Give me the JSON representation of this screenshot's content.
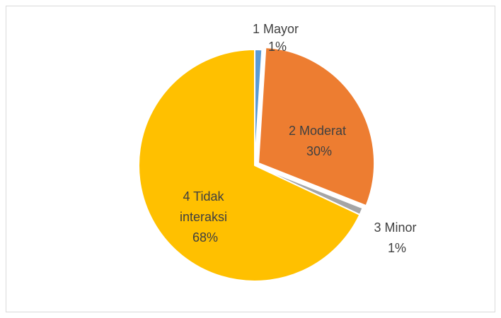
{
  "chart_data": {
    "type": "pie",
    "title": "",
    "slices": [
      {
        "name": "1 Mayor",
        "value": 1,
        "label": "1%",
        "color": "#5B9BD5"
      },
      {
        "name": "2 Moderat",
        "value": 30,
        "label": "30%",
        "color": "#ED7D31"
      },
      {
        "name": "3 Minor",
        "value": 1,
        "label": "1%",
        "color": "#A5A5A5"
      },
      {
        "name": "4 Tidak interaksi",
        "value": 68,
        "label": "68%",
        "color": "#FFC000"
      }
    ],
    "exploded_slice": "2 Moderat",
    "legend": "none",
    "data_labels": "category name and percentage"
  }
}
